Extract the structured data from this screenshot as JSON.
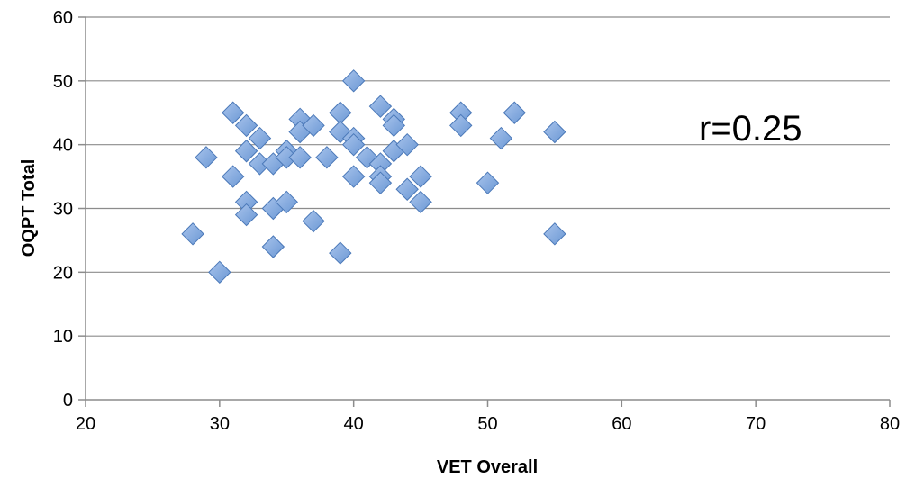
{
  "chart_data": {
    "type": "scatter",
    "xlabel": "VET Overall",
    "ylabel": "OQPT Total",
    "xlim": [
      20,
      80
    ],
    "ylim": [
      0,
      60
    ],
    "xticks": [
      "20",
      "30",
      "40",
      "50",
      "60",
      "70",
      "80"
    ],
    "yticks": [
      "0",
      "10",
      "20",
      "30",
      "40",
      "50",
      "60"
    ],
    "grid": "horizontal",
    "annotation": "r=0.25",
    "marker_color": "#6a97d4",
    "marker_edge": "#4a78b8",
    "series": [
      {
        "points": [
          [
            28,
            26
          ],
          [
            29,
            38
          ],
          [
            30,
            20
          ],
          [
            31,
            45
          ],
          [
            31,
            35
          ],
          [
            32,
            43
          ],
          [
            32,
            39
          ],
          [
            32,
            31
          ],
          [
            32,
            29
          ],
          [
            33,
            41
          ],
          [
            33,
            37
          ],
          [
            34,
            37
          ],
          [
            34,
            30
          ],
          [
            34,
            24
          ],
          [
            35,
            39
          ],
          [
            35,
            38
          ],
          [
            35,
            31
          ],
          [
            36,
            44
          ],
          [
            36,
            42
          ],
          [
            36,
            38
          ],
          [
            37,
            43
          ],
          [
            37,
            28
          ],
          [
            38,
            38
          ],
          [
            39,
            45
          ],
          [
            39,
            42
          ],
          [
            39,
            23
          ],
          [
            40,
            50
          ],
          [
            40,
            41
          ],
          [
            40,
            40
          ],
          [
            40,
            35
          ],
          [
            41,
            38
          ],
          [
            42,
            46
          ],
          [
            42,
            37
          ],
          [
            42,
            35
          ],
          [
            42,
            34
          ],
          [
            43,
            44
          ],
          [
            43,
            43
          ],
          [
            43,
            39
          ],
          [
            44,
            40
          ],
          [
            44,
            33
          ],
          [
            45,
            35
          ],
          [
            45,
            31
          ],
          [
            48,
            45
          ],
          [
            48,
            43
          ],
          [
            50,
            34
          ],
          [
            51,
            41
          ],
          [
            52,
            45
          ],
          [
            55,
            42
          ],
          [
            55,
            26
          ]
        ]
      }
    ]
  }
}
